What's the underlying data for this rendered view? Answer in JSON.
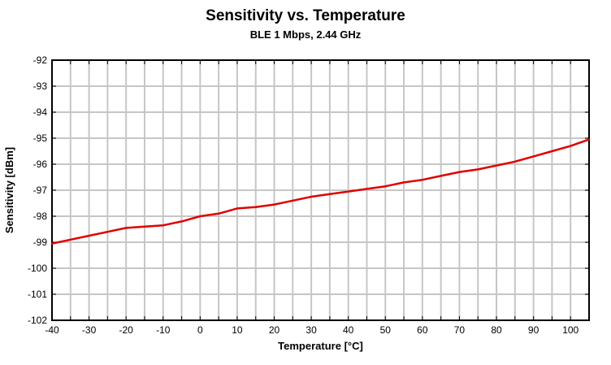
{
  "title": "Sensitivity vs. Temperature",
  "subtitle": "BLE 1 Mbps, 2.44 GHz",
  "colors": {
    "line": "#e00000",
    "grid": "#c6c6c6",
    "axis": "#000000",
    "background": "#ffffff",
    "text": "#000000"
  },
  "chart_data": {
    "type": "line",
    "title": "Sensitivity vs. Temperature",
    "subtitle": "BLE 1 Mbps, 2.44 GHz",
    "xlabel": "Temperature [°C]",
    "ylabel": "Sensitivity [dBm]",
    "xlim": [
      -40,
      105
    ],
    "ylim": [
      -102,
      -92
    ],
    "grid": true,
    "legend": false,
    "x_grid_step": 5,
    "y_grid_step": 1,
    "x_tick_labels": [
      "-40",
      "-30",
      "-20",
      "-10",
      "0",
      "10",
      "20",
      "30",
      "40",
      "50",
      "60",
      "70",
      "80",
      "90",
      "100"
    ],
    "x_tick_values": [
      -40,
      -30,
      -20,
      -10,
      0,
      10,
      20,
      30,
      40,
      50,
      60,
      70,
      80,
      90,
      100
    ],
    "y_tick_labels": [
      "-92",
      "-93",
      "-94",
      "-95",
      "-96",
      "-97",
      "-98",
      "-99",
      "-100",
      "-101",
      "-102"
    ],
    "y_tick_values": [
      -92,
      -93,
      -94,
      -95,
      -96,
      -97,
      -98,
      -99,
      -100,
      -101,
      -102
    ],
    "series": [
      {
        "name": "Sensitivity",
        "color": "#e00000",
        "x": [
          -40,
          -35,
          -30,
          -25,
          -20,
          -15,
          -10,
          -5,
          0,
          5,
          10,
          15,
          20,
          25,
          30,
          35,
          40,
          45,
          50,
          55,
          60,
          65,
          70,
          75,
          80,
          85,
          90,
          95,
          100,
          105
        ],
        "y": [
          -99.05,
          -98.9,
          -98.75,
          -98.6,
          -98.45,
          -98.4,
          -98.35,
          -98.2,
          -98.0,
          -97.9,
          -97.7,
          -97.65,
          -97.55,
          -97.4,
          -97.25,
          -97.15,
          -97.05,
          -96.95,
          -96.85,
          -96.7,
          -96.6,
          -96.45,
          -96.3,
          -96.2,
          -96.05,
          -95.9,
          -95.7,
          -95.5,
          -95.3,
          -95.05
        ]
      }
    ]
  }
}
